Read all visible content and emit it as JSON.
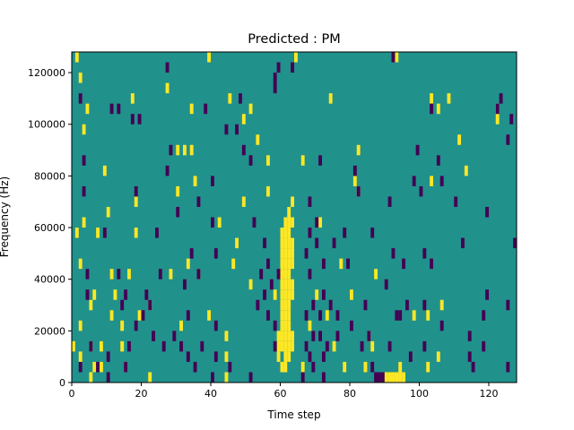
{
  "chart_data": {
    "type": "heatmap",
    "title": "Predicted : PM",
    "xlabel": "Time step",
    "ylabel": "Frequency (Hz)",
    "xlim": [
      0,
      128
    ],
    "ylim": [
      0,
      128000
    ],
    "x_ticks": [
      0,
      20,
      40,
      60,
      80,
      100,
      120
    ],
    "y_ticks": [
      0,
      20000,
      40000,
      60000,
      80000,
      100000,
      120000
    ],
    "x_tick_labels": [
      "0",
      "20",
      "40",
      "60",
      "80",
      "100",
      "120"
    ],
    "y_tick_labels": [
      "0",
      "20000",
      "40000",
      "60000",
      "80000",
      "100000",
      "120000"
    ],
    "colors": {
      "background": "#21918c",
      "positive": "#fde725",
      "negative": "#440154"
    },
    "cell_height_hz": 4000,
    "positive_cells": [
      [
        1,
        124000,
        4000
      ],
      [
        2,
        116000,
        4000
      ],
      [
        0,
        12000,
        4000
      ],
      [
        1,
        56000,
        4000
      ],
      [
        2,
        44000,
        4000
      ],
      [
        2,
        20000,
        4000
      ],
      [
        2,
        8000,
        4000
      ],
      [
        3,
        96000,
        4000
      ],
      [
        3,
        60000,
        4000
      ],
      [
        4,
        104000,
        4000
      ],
      [
        5,
        0,
        4000
      ],
      [
        5,
        12000,
        4000
      ],
      [
        5,
        28000,
        4000
      ],
      [
        6,
        32000,
        4000
      ],
      [
        6,
        4000,
        4000
      ],
      [
        7,
        56000,
        4000
      ],
      [
        8,
        12000,
        4000
      ],
      [
        8,
        4000,
        4000
      ],
      [
        9,
        80000,
        4000
      ],
      [
        10,
        64000,
        4000
      ],
      [
        11,
        24000,
        4000
      ],
      [
        11,
        40000,
        4000
      ],
      [
        12,
        32000,
        4000
      ],
      [
        14,
        20000,
        4000
      ],
      [
        14,
        12000,
        4000
      ],
      [
        15,
        4000,
        4000
      ],
      [
        16,
        40000,
        4000
      ],
      [
        17,
        108000,
        4000
      ],
      [
        18,
        68000,
        4000
      ],
      [
        18,
        56000,
        4000
      ],
      [
        19,
        24000,
        4000
      ],
      [
        22,
        28000,
        4000
      ],
      [
        22,
        0,
        4000
      ],
      [
        27,
        112000,
        4000
      ],
      [
        28,
        40000,
        4000
      ],
      [
        30,
        88000,
        4000
      ],
      [
        30,
        72000,
        4000
      ],
      [
        31,
        20000,
        4000
      ],
      [
        32,
        88000,
        4000
      ],
      [
        33,
        44000,
        4000
      ],
      [
        34,
        104000,
        4000
      ],
      [
        34,
        88000,
        4000
      ],
      [
        35,
        76000,
        4000
      ],
      [
        36,
        40000,
        4000
      ],
      [
        39,
        124000,
        4000
      ],
      [
        39,
        24000,
        4000
      ],
      [
        42,
        60000,
        4000
      ],
      [
        44,
        16000,
        4000
      ],
      [
        44,
        8000,
        4000
      ],
      [
        44,
        0,
        4000
      ],
      [
        45,
        108000,
        4000
      ],
      [
        46,
        44000,
        4000
      ],
      [
        47,
        52000,
        4000
      ],
      [
        49,
        100000,
        4000
      ],
      [
        49,
        68000,
        4000
      ],
      [
        51,
        104000,
        4000
      ],
      [
        51,
        36000,
        4000
      ],
      [
        53,
        92000,
        4000
      ],
      [
        56,
        84000,
        4000
      ],
      [
        56,
        72000,
        4000
      ],
      [
        58,
        32000,
        4000
      ],
      [
        59,
        16000,
        4000
      ],
      [
        60,
        48000,
        4000
      ],
      [
        60,
        52000,
        4000
      ],
      [
        60,
        56000,
        4000
      ],
      [
        59,
        12000,
        4000
      ],
      [
        59,
        8000,
        4000
      ],
      [
        60,
        4000,
        4000
      ],
      [
        60,
        44000,
        4000
      ],
      [
        60,
        40000,
        4000
      ],
      [
        60,
        36000,
        4000
      ],
      [
        60,
        32000,
        4000
      ],
      [
        60,
        28000,
        4000
      ],
      [
        60,
        24000,
        4000
      ],
      [
        60,
        20000,
        4000
      ],
      [
        60,
        16000,
        4000
      ],
      [
        60,
        12000,
        4000
      ],
      [
        61,
        60000,
        4000
      ],
      [
        61,
        56000,
        4000
      ],
      [
        61,
        52000,
        4000
      ],
      [
        61,
        48000,
        4000
      ],
      [
        61,
        44000,
        4000
      ],
      [
        61,
        40000,
        4000
      ],
      [
        61,
        36000,
        4000
      ],
      [
        61,
        32000,
        4000
      ],
      [
        61,
        28000,
        4000
      ],
      [
        61,
        24000,
        4000
      ],
      [
        61,
        20000,
        4000
      ],
      [
        61,
        16000,
        4000
      ],
      [
        61,
        12000,
        4000
      ],
      [
        61,
        8000,
        4000
      ],
      [
        61,
        4000,
        4000
      ],
      [
        62,
        64000,
        4000
      ],
      [
        62,
        60000,
        4000
      ],
      [
        62,
        56000,
        4000
      ],
      [
        62,
        52000,
        4000
      ],
      [
        62,
        48000,
        4000
      ],
      [
        62,
        44000,
        4000
      ],
      [
        62,
        40000,
        4000
      ],
      [
        62,
        36000,
        4000
      ],
      [
        62,
        32000,
        4000
      ],
      [
        62,
        28000,
        4000
      ],
      [
        62,
        24000,
        4000
      ],
      [
        62,
        20000,
        4000
      ],
      [
        62,
        16000,
        4000
      ],
      [
        62,
        12000,
        4000
      ],
      [
        62,
        8000,
        4000
      ],
      [
        63,
        68000,
        4000
      ],
      [
        63,
        60000,
        4000
      ],
      [
        63,
        52000,
        4000
      ],
      [
        63,
        48000,
        4000
      ],
      [
        63,
        44000,
        4000
      ],
      [
        63,
        36000,
        4000
      ],
      [
        63,
        32000,
        4000
      ],
      [
        63,
        16000,
        4000
      ],
      [
        63,
        12000,
        4000
      ],
      [
        64,
        124000,
        4000
      ],
      [
        66,
        84000,
        4000
      ],
      [
        66,
        4000,
        4000
      ],
      [
        68,
        20000,
        4000
      ],
      [
        70,
        32000,
        4000
      ],
      [
        71,
        60000,
        4000
      ],
      [
        73,
        24000,
        4000
      ],
      [
        74,
        108000,
        4000
      ],
      [
        75,
        12000,
        4000
      ],
      [
        77,
        44000,
        4000
      ],
      [
        78,
        4000,
        4000
      ],
      [
        80,
        32000,
        4000
      ],
      [
        81,
        76000,
        4000
      ],
      [
        82,
        88000,
        4000
      ],
      [
        82,
        72000,
        4000
      ],
      [
        84,
        4000,
        4000
      ],
      [
        85,
        16000,
        4000
      ],
      [
        86,
        12000,
        4000
      ],
      [
        87,
        40000,
        4000
      ],
      [
        89,
        0,
        4000
      ],
      [
        90,
        0,
        4000
      ],
      [
        91,
        0,
        4000
      ],
      [
        92,
        0,
        4000
      ],
      [
        93,
        0,
        4000
      ],
      [
        94,
        0,
        4000
      ],
      [
        95,
        0,
        4000
      ],
      [
        93,
        0,
        4000
      ],
      [
        94,
        4000,
        4000
      ],
      [
        93,
        124000,
        4000
      ],
      [
        98,
        24000,
        4000
      ],
      [
        102,
        24000,
        4000
      ],
      [
        102,
        4000,
        4000
      ],
      [
        103,
        76000,
        4000
      ],
      [
        103,
        108000,
        4000
      ],
      [
        105,
        104000,
        4000
      ],
      [
        105,
        8000,
        4000
      ],
      [
        106,
        28000,
        4000
      ],
      [
        108,
        108000,
        4000
      ],
      [
        111,
        92000,
        4000
      ],
      [
        113,
        80000,
        4000
      ],
      [
        122,
        100000,
        4000
      ],
      [
        122,
        104000,
        4000
      ]
    ],
    "negative_cells": [
      [
        2,
        4000,
        4000
      ],
      [
        2,
        108000,
        4000
      ],
      [
        3,
        84000,
        4000
      ],
      [
        3,
        72000,
        4000
      ],
      [
        4,
        32000,
        4000
      ],
      [
        4,
        40000,
        4000
      ],
      [
        5,
        12000,
        4000
      ],
      [
        7,
        4000,
        4000
      ],
      [
        9,
        56000,
        4000
      ],
      [
        10,
        8000,
        4000
      ],
      [
        10,
        0,
        4000
      ],
      [
        11,
        104000,
        4000
      ],
      [
        13,
        104000,
        4000
      ],
      [
        13,
        40000,
        4000
      ],
      [
        14,
        28000,
        4000
      ],
      [
        15,
        32000,
        4000
      ],
      [
        15,
        4000,
        4000
      ],
      [
        16,
        12000,
        4000
      ],
      [
        17,
        100000,
        4000
      ],
      [
        18,
        72000,
        4000
      ],
      [
        18,
        20000,
        4000
      ],
      [
        19,
        100000,
        4000
      ],
      [
        20,
        24000,
        4000
      ],
      [
        21,
        32000,
        4000
      ],
      [
        22,
        28000,
        4000
      ],
      [
        23,
        16000,
        4000
      ],
      [
        24,
        56000,
        4000
      ],
      [
        25,
        40000,
        4000
      ],
      [
        26,
        12000,
        4000
      ],
      [
        27,
        120000,
        4000
      ],
      [
        27,
        80000,
        4000
      ],
      [
        28,
        88000,
        4000
      ],
      [
        29,
        16000,
        4000
      ],
      [
        30,
        64000,
        4000
      ],
      [
        31,
        12000,
        4000
      ],
      [
        32,
        36000,
        4000
      ],
      [
        33,
        24000,
        4000
      ],
      [
        33,
        8000,
        4000
      ],
      [
        34,
        48000,
        4000
      ],
      [
        35,
        4000,
        4000
      ],
      [
        36,
        68000,
        4000
      ],
      [
        36,
        40000,
        4000
      ],
      [
        37,
        12000,
        4000
      ],
      [
        38,
        104000,
        4000
      ],
      [
        40,
        0,
        4000
      ],
      [
        40,
        76000,
        4000
      ],
      [
        40,
        60000,
        4000
      ],
      [
        41,
        8000,
        4000
      ],
      [
        41,
        48000,
        4000
      ],
      [
        41,
        20000,
        4000
      ],
      [
        44,
        96000,
        4000
      ],
      [
        45,
        4000,
        4000
      ],
      [
        47,
        96000,
        4000
      ],
      [
        48,
        108000,
        4000
      ],
      [
        49,
        88000,
        4000
      ],
      [
        51,
        84000,
        4000
      ],
      [
        51,
        0,
        4000
      ],
      [
        52,
        60000,
        4000
      ],
      [
        53,
        28000,
        4000
      ],
      [
        54,
        40000,
        4000
      ],
      [
        55,
        32000,
        4000
      ],
      [
        56,
        44000,
        4000
      ],
      [
        56,
        24000,
        4000
      ],
      [
        57,
        36000,
        4000
      ],
      [
        58,
        20000,
        4000
      ],
      [
        58,
        12000,
        4000
      ],
      [
        59,
        120000,
        4000
      ],
      [
        59,
        40000,
        4000
      ],
      [
        63,
        120000,
        4000
      ],
      [
        66,
        0,
        4000
      ],
      [
        67,
        48000,
        4000
      ],
      [
        67,
        24000,
        4000
      ],
      [
        67,
        12000,
        4000
      ],
      [
        68,
        56000,
        4000
      ],
      [
        68,
        68000,
        4000
      ],
      [
        68,
        40000,
        4000
      ],
      [
        68,
        8000,
        4000
      ],
      [
        69,
        28000,
        4000
      ],
      [
        69,
        16000,
        4000
      ],
      [
        69,
        4000,
        4000
      ],
      [
        70,
        60000,
        4000
      ],
      [
        70,
        52000,
        4000
      ],
      [
        71,
        84000,
        4000
      ],
      [
        71,
        16000,
        4000
      ],
      [
        71,
        24000,
        4000
      ],
      [
        72,
        44000,
        4000
      ],
      [
        72,
        32000,
        4000
      ],
      [
        72,
        8000,
        4000
      ],
      [
        72,
        0,
        4000
      ],
      [
        73,
        12000,
        4000
      ],
      [
        74,
        28000,
        4000
      ],
      [
        75,
        52000,
        4000
      ],
      [
        76,
        24000,
        4000
      ],
      [
        76,
        16000,
        4000
      ],
      [
        78,
        56000,
        4000
      ],
      [
        79,
        44000,
        4000
      ],
      [
        80,
        20000,
        4000
      ],
      [
        81,
        80000,
        4000
      ],
      [
        82,
        72000,
        4000
      ],
      [
        83,
        12000,
        4000
      ],
      [
        84,
        28000,
        4000
      ],
      [
        85,
        16000,
        4000
      ],
      [
        86,
        56000,
        4000
      ],
      [
        86,
        4000,
        4000
      ],
      [
        87,
        0,
        4000
      ],
      [
        88,
        0,
        4000
      ],
      [
        89,
        0,
        4000
      ],
      [
        90,
        36000,
        4000
      ],
      [
        91,
        12000,
        4000
      ],
      [
        91,
        68000,
        4000
      ],
      [
        92,
        48000,
        4000
      ],
      [
        92,
        124000,
        4000
      ],
      [
        93,
        24000,
        4000
      ],
      [
        94,
        24000,
        4000
      ],
      [
        95,
        44000,
        4000
      ],
      [
        96,
        28000,
        4000
      ],
      [
        97,
        8000,
        4000
      ],
      [
        98,
        76000,
        4000
      ],
      [
        99,
        88000,
        4000
      ],
      [
        100,
        72000,
        4000
      ],
      [
        101,
        28000,
        4000
      ],
      [
        101,
        48000,
        4000
      ],
      [
        101,
        12000,
        4000
      ],
      [
        103,
        44000,
        4000
      ],
      [
        103,
        104000,
        4000
      ],
      [
        105,
        84000,
        4000
      ],
      [
        106,
        20000,
        4000
      ],
      [
        106,
        76000,
        4000
      ],
      [
        110,
        68000,
        4000
      ],
      [
        112,
        52000,
        4000
      ],
      [
        114,
        16000,
        4000
      ],
      [
        114,
        8000,
        4000
      ],
      [
        115,
        4000,
        4000
      ],
      [
        118,
        24000,
        4000
      ],
      [
        118,
        12000,
        4000
      ],
      [
        119,
        64000,
        4000
      ],
      [
        119,
        32000,
        4000
      ],
      [
        122,
        104000,
        4000
      ],
      [
        123,
        108000,
        4000
      ],
      [
        125,
        28000,
        4000
      ],
      [
        125,
        92000,
        4000
      ],
      [
        125,
        4000,
        4000
      ],
      [
        127,
        52000,
        4000
      ],
      [
        126,
        100000,
        4000
      ],
      [
        58,
        116000,
        4000
      ],
      [
        58,
        112000,
        4000
      ],
      [
        55,
        52000,
        4000
      ]
    ]
  }
}
